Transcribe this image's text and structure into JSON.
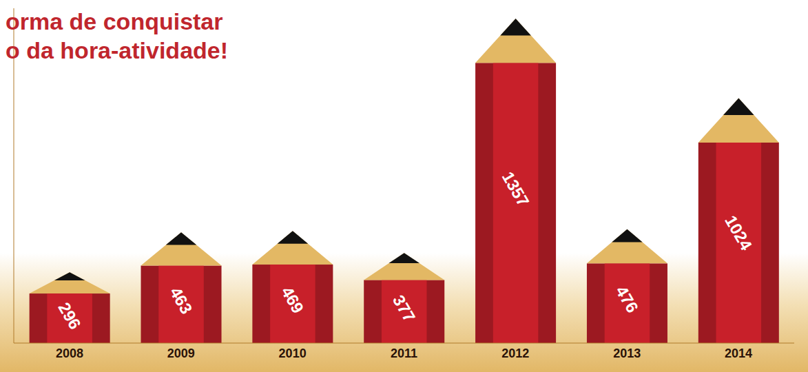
{
  "chart_data": {
    "type": "bar",
    "title": "orma de conquistar\no da hora-atividade!",
    "categories": [
      "2008",
      "2009",
      "2010",
      "2011",
      "2012",
      "2013",
      "2014"
    ],
    "values": [
      296,
      463,
      469,
      377,
      1357,
      476,
      1024
    ],
    "color": "#c8202a",
    "ylim": [
      0,
      1400
    ],
    "tick_labels": "x",
    "data_labels": true
  }
}
